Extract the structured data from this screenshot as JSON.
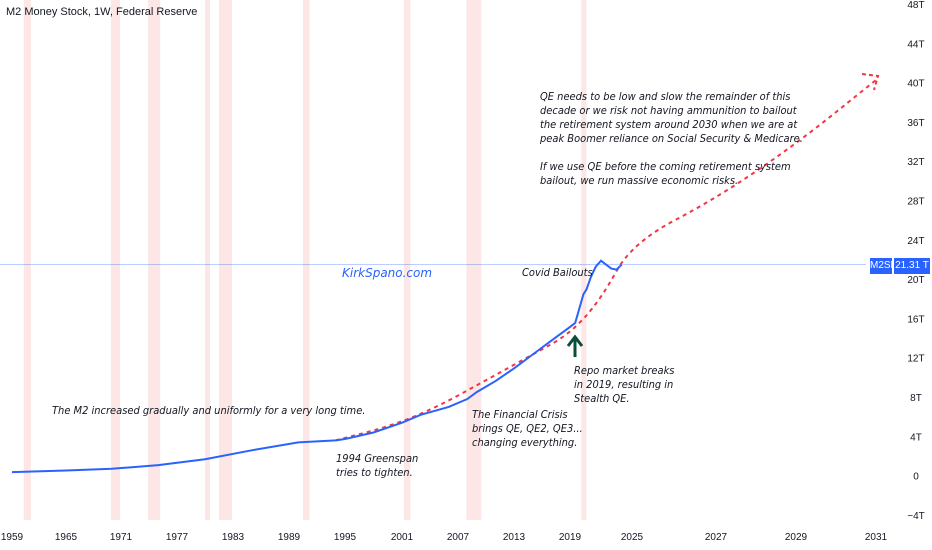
{
  "title": "M2 Money Stock, 1W, Federal Reserve",
  "brand": "KirkSpano.com",
  "price_tag": {
    "name": "M2SL",
    "value": "21.31 T"
  },
  "annotations": {
    "gradual": "The M2 increased gradually and uniformly for a very long time.",
    "greenspan": "1994 Greenspan\ntries to tighten.",
    "financial_crisis": "The Financial Crisis\nbrings QE, QE2, QE3...\nchanging everything.",
    "repo": "Repo market breaks\nin 2019, resulting in\nStealth QE.",
    "covid": "Covid Bailouts",
    "qe_note": "QE needs to be low and slow the remainder of this\ndecade or we risk not having ammunition to bailout\nthe retirement system around 2030 when we are at\npeak Boomer reliance on Social Security & Medicare.\n\nIf we use QE before the coming retirement system\nbailout, we run massive economic risks."
  },
  "chart_data": {
    "type": "line",
    "title": "M2 Money Stock, 1W, Federal Reserve",
    "x_ticks": [
      "1959",
      "1965",
      "1971",
      "1977",
      "1983",
      "1989",
      "1995",
      "2001",
      "2007",
      "2013",
      "2019",
      "2025",
      "2027",
      "2029",
      "2031"
    ],
    "y_ticks": [
      "48T",
      "44T",
      "40T",
      "36T",
      "32T",
      "28T",
      "24T",
      "20T",
      "16T",
      "12T",
      "8T",
      "4T",
      "0",
      "−4T"
    ],
    "ylim": [
      -4,
      48
    ],
    "unit": "T",
    "current_value": 21.31,
    "series": [
      {
        "name": "M2SL",
        "color": "#2962ff",
        "x": [
          1959,
          1965,
          1970,
          1975,
          1980,
          1985,
          1990,
          1994,
          1995,
          1998,
          2001,
          2003,
          2006,
          2008,
          2009,
          2011,
          2013,
          2015,
          2017,
          2019,
          2019.5,
          2020,
          2020.3,
          2020.6,
          2021,
          2021.5,
          2022,
          2022.5,
          2023,
          2023.5,
          2024
        ],
        "y": [
          0.29,
          0.46,
          0.63,
          1.0,
          1.6,
          2.5,
          3.3,
          3.5,
          3.65,
          4.3,
          5.3,
          6.1,
          6.9,
          7.7,
          8.4,
          9.5,
          10.8,
          12.2,
          13.6,
          15.0,
          15.4,
          17.2,
          18.3,
          18.8,
          20.0,
          21.1,
          21.7,
          21.3,
          20.9,
          20.8,
          21.3
        ]
      },
      {
        "name": "Projection",
        "color": "#f23645",
        "dashed": true,
        "x": [
          1994,
          2000,
          2005,
          2010,
          2015,
          2019,
          2022,
          2025,
          2027,
          2029,
          2031
        ],
        "y": [
          3.5,
          5.0,
          7.0,
          9.6,
          12.2,
          14.3,
          17.8,
          23.5,
          28.0,
          33.5,
          40.0
        ]
      }
    ],
    "recession_shading": [
      [
        1960.3,
        1961.1
      ],
      [
        1969.9,
        1970.9
      ],
      [
        1973.9,
        1975.2
      ],
      [
        1980.0,
        1980.5
      ],
      [
        1981.5,
        1982.9
      ],
      [
        1990.5,
        1991.2
      ],
      [
        2001.2,
        2001.9
      ],
      [
        2007.9,
        2009.5
      ],
      [
        2020.1,
        2020.4
      ]
    ]
  }
}
